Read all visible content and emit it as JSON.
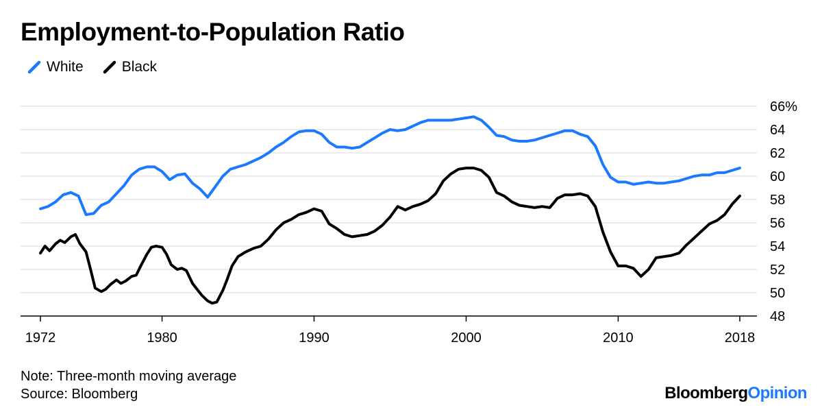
{
  "title": "Employment-to-Population Ratio",
  "legend": [
    {
      "label": "White",
      "color": "#1a79ff"
    },
    {
      "label": "Black",
      "color": "#000000"
    }
  ],
  "note": "Note: Three-month moving average",
  "source": "Source: Bloomberg",
  "brand": {
    "part1": "Bloomberg",
    "part2": "Opinion",
    "accent": "#1a79ff"
  },
  "chart_data": {
    "type": "line",
    "title": "Employment-to-Population Ratio",
    "xlabel": "",
    "ylabel": "",
    "xlim": [
      1972,
      2018
    ],
    "ylim": [
      48,
      66
    ],
    "y_ticks": [
      48,
      50,
      52,
      54,
      56,
      58,
      60,
      62,
      64,
      66
    ],
    "y_tick_labels": [
      "48",
      "50",
      "52",
      "54",
      "56",
      "58",
      "60",
      "62",
      "64",
      "66%"
    ],
    "x_ticks": [
      1972,
      1980,
      1990,
      2000,
      2010,
      2018
    ],
    "x_tick_labels": [
      "1972",
      "1980",
      "1990",
      "2000",
      "2010",
      "2018"
    ],
    "grid": true,
    "series": [
      {
        "name": "White",
        "color": "#1a79ff",
        "points": [
          [
            1972.0,
            57.2
          ],
          [
            1972.5,
            57.4
          ],
          [
            1973.0,
            57.8
          ],
          [
            1973.5,
            58.4
          ],
          [
            1974.0,
            58.6
          ],
          [
            1974.5,
            58.3
          ],
          [
            1975.0,
            56.7
          ],
          [
            1975.5,
            56.8
          ],
          [
            1976.0,
            57.5
          ],
          [
            1976.5,
            57.8
          ],
          [
            1977.0,
            58.5
          ],
          [
            1977.5,
            59.2
          ],
          [
            1978.0,
            60.1
          ],
          [
            1978.5,
            60.6
          ],
          [
            1979.0,
            60.8
          ],
          [
            1979.5,
            60.8
          ],
          [
            1980.0,
            60.4
          ],
          [
            1980.5,
            59.7
          ],
          [
            1981.0,
            60.1
          ],
          [
            1981.5,
            60.2
          ],
          [
            1982.0,
            59.4
          ],
          [
            1982.5,
            58.9
          ],
          [
            1983.0,
            58.2
          ],
          [
            1983.5,
            59.1
          ],
          [
            1984.0,
            60.0
          ],
          [
            1984.5,
            60.6
          ],
          [
            1985.0,
            60.8
          ],
          [
            1985.5,
            61.0
          ],
          [
            1986.0,
            61.3
          ],
          [
            1986.5,
            61.6
          ],
          [
            1987.0,
            62.0
          ],
          [
            1987.5,
            62.5
          ],
          [
            1988.0,
            62.9
          ],
          [
            1988.5,
            63.4
          ],
          [
            1989.0,
            63.8
          ],
          [
            1989.5,
            63.9
          ],
          [
            1990.0,
            63.9
          ],
          [
            1990.5,
            63.6
          ],
          [
            1991.0,
            62.9
          ],
          [
            1991.5,
            62.5
          ],
          [
            1992.0,
            62.5
          ],
          [
            1992.5,
            62.4
          ],
          [
            1993.0,
            62.5
          ],
          [
            1993.5,
            62.9
          ],
          [
            1994.0,
            63.3
          ],
          [
            1994.5,
            63.7
          ],
          [
            1995.0,
            64.0
          ],
          [
            1995.5,
            63.9
          ],
          [
            1996.0,
            64.0
          ],
          [
            1996.5,
            64.3
          ],
          [
            1997.0,
            64.6
          ],
          [
            1997.5,
            64.8
          ],
          [
            1998.0,
            64.8
          ],
          [
            1998.5,
            64.8
          ],
          [
            1999.0,
            64.8
          ],
          [
            1999.5,
            64.9
          ],
          [
            2000.0,
            65.0
          ],
          [
            2000.5,
            65.1
          ],
          [
            2001.0,
            64.8
          ],
          [
            2001.5,
            64.2
          ],
          [
            2002.0,
            63.5
          ],
          [
            2002.5,
            63.4
          ],
          [
            2003.0,
            63.1
          ],
          [
            2003.5,
            63.0
          ],
          [
            2004.0,
            63.0
          ],
          [
            2004.5,
            63.1
          ],
          [
            2005.0,
            63.3
          ],
          [
            2005.5,
            63.5
          ],
          [
            2006.0,
            63.7
          ],
          [
            2006.5,
            63.9
          ],
          [
            2007.0,
            63.9
          ],
          [
            2007.5,
            63.6
          ],
          [
            2008.0,
            63.4
          ],
          [
            2008.5,
            62.6
          ],
          [
            2009.0,
            61.0
          ],
          [
            2009.5,
            59.9
          ],
          [
            2010.0,
            59.5
          ],
          [
            2010.5,
            59.5
          ],
          [
            2011.0,
            59.3
          ],
          [
            2011.5,
            59.4
          ],
          [
            2012.0,
            59.5
          ],
          [
            2012.5,
            59.4
          ],
          [
            2013.0,
            59.4
          ],
          [
            2013.5,
            59.5
          ],
          [
            2014.0,
            59.6
          ],
          [
            2014.5,
            59.8
          ],
          [
            2015.0,
            60.0
          ],
          [
            2015.5,
            60.1
          ],
          [
            2016.0,
            60.1
          ],
          [
            2016.5,
            60.3
          ],
          [
            2017.0,
            60.3
          ],
          [
            2017.5,
            60.5
          ],
          [
            2018.0,
            60.7
          ]
        ]
      },
      {
        "name": "Black",
        "color": "#000000",
        "points": [
          [
            1972.0,
            53.4
          ],
          [
            1972.3,
            54.0
          ],
          [
            1972.6,
            53.6
          ],
          [
            1973.0,
            54.2
          ],
          [
            1973.3,
            54.5
          ],
          [
            1973.6,
            54.3
          ],
          [
            1974.0,
            54.8
          ],
          [
            1974.3,
            55.0
          ],
          [
            1974.6,
            54.2
          ],
          [
            1975.0,
            53.5
          ],
          [
            1975.3,
            52.0
          ],
          [
            1975.6,
            50.4
          ],
          [
            1976.0,
            50.1
          ],
          [
            1976.3,
            50.3
          ],
          [
            1976.6,
            50.7
          ],
          [
            1977.0,
            51.1
          ],
          [
            1977.3,
            50.8
          ],
          [
            1977.6,
            51.0
          ],
          [
            1978.0,
            51.4
          ],
          [
            1978.3,
            51.5
          ],
          [
            1978.6,
            52.3
          ],
          [
            1979.0,
            53.3
          ],
          [
            1979.3,
            53.9
          ],
          [
            1979.6,
            54.0
          ],
          [
            1980.0,
            53.9
          ],
          [
            1980.3,
            53.3
          ],
          [
            1980.6,
            52.4
          ],
          [
            1981.0,
            52.0
          ],
          [
            1981.3,
            52.1
          ],
          [
            1981.6,
            51.9
          ],
          [
            1982.0,
            50.8
          ],
          [
            1982.3,
            50.3
          ],
          [
            1982.6,
            49.8
          ],
          [
            1983.0,
            49.3
          ],
          [
            1983.3,
            49.1
          ],
          [
            1983.6,
            49.2
          ],
          [
            1984.0,
            50.2
          ],
          [
            1984.3,
            51.2
          ],
          [
            1984.6,
            52.3
          ],
          [
            1985.0,
            53.1
          ],
          [
            1985.5,
            53.5
          ],
          [
            1986.0,
            53.8
          ],
          [
            1986.5,
            54.0
          ],
          [
            1987.0,
            54.6
          ],
          [
            1987.5,
            55.4
          ],
          [
            1988.0,
            56.0
          ],
          [
            1988.5,
            56.3
          ],
          [
            1989.0,
            56.7
          ],
          [
            1989.5,
            56.9
          ],
          [
            1990.0,
            57.2
          ],
          [
            1990.5,
            57.0
          ],
          [
            1991.0,
            55.9
          ],
          [
            1991.5,
            55.5
          ],
          [
            1992.0,
            55.0
          ],
          [
            1992.5,
            54.8
          ],
          [
            1993.0,
            54.9
          ],
          [
            1993.5,
            55.0
          ],
          [
            1994.0,
            55.3
          ],
          [
            1994.5,
            55.8
          ],
          [
            1995.0,
            56.5
          ],
          [
            1995.5,
            57.4
          ],
          [
            1996.0,
            57.1
          ],
          [
            1996.5,
            57.4
          ],
          [
            1997.0,
            57.6
          ],
          [
            1997.5,
            57.9
          ],
          [
            1998.0,
            58.5
          ],
          [
            1998.5,
            59.6
          ],
          [
            1999.0,
            60.2
          ],
          [
            1999.5,
            60.6
          ],
          [
            2000.0,
            60.7
          ],
          [
            2000.5,
            60.7
          ],
          [
            2001.0,
            60.5
          ],
          [
            2001.5,
            59.9
          ],
          [
            2002.0,
            58.6
          ],
          [
            2002.5,
            58.3
          ],
          [
            2003.0,
            57.8
          ],
          [
            2003.5,
            57.5
          ],
          [
            2004.0,
            57.4
          ],
          [
            2004.5,
            57.3
          ],
          [
            2005.0,
            57.4
          ],
          [
            2005.5,
            57.3
          ],
          [
            2006.0,
            58.1
          ],
          [
            2006.5,
            58.4
          ],
          [
            2007.0,
            58.4
          ],
          [
            2007.5,
            58.5
          ],
          [
            2008.0,
            58.3
          ],
          [
            2008.5,
            57.4
          ],
          [
            2009.0,
            55.2
          ],
          [
            2009.5,
            53.5
          ],
          [
            2010.0,
            52.3
          ],
          [
            2010.5,
            52.3
          ],
          [
            2011.0,
            52.1
          ],
          [
            2011.5,
            51.4
          ],
          [
            2012.0,
            52.0
          ],
          [
            2012.5,
            53.0
          ],
          [
            2013.0,
            53.1
          ],
          [
            2013.5,
            53.2
          ],
          [
            2014.0,
            53.4
          ],
          [
            2014.5,
            54.1
          ],
          [
            2015.0,
            54.7
          ],
          [
            2015.5,
            55.3
          ],
          [
            2016.0,
            55.9
          ],
          [
            2016.5,
            56.2
          ],
          [
            2017.0,
            56.7
          ],
          [
            2017.5,
            57.6
          ],
          [
            2018.0,
            58.3
          ]
        ]
      }
    ]
  }
}
